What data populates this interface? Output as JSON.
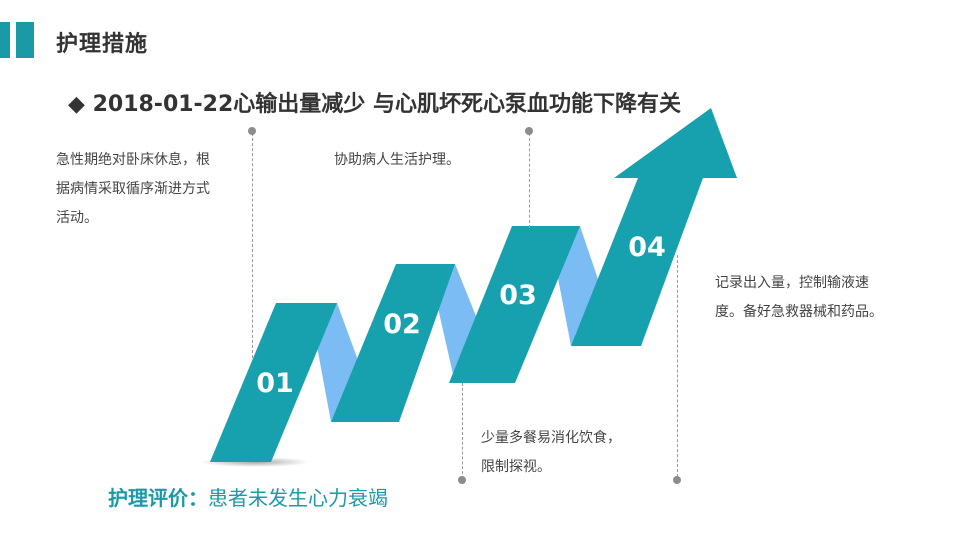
{
  "title": "护理措施",
  "headline": "◆ 2018-01-22心输出量减少 与心肌坏死心泵血功能下降有关",
  "steps": [
    {
      "number": "01",
      "text_lines": [
        "急性期绝对卧床休息，根",
        "据病情采取循序渐进方式",
        "活动。"
      ]
    },
    {
      "number": "02",
      "text_lines": [
        "协助病人生活护理。"
      ]
    },
    {
      "number": "03",
      "text_lines": [
        "少量多餐易消化饮食，",
        "限制探视。"
      ]
    },
    {
      "number": "04",
      "text_lines": [
        "记录出入量，控制输液速",
        "度。备好急救器械和药品。"
      ]
    }
  ],
  "evaluation": {
    "label": "护理评价：",
    "value": "患者未发生心力衰竭"
  },
  "colors": {
    "accent": "#1a9aa7",
    "ribbon_front": "#17a0ad",
    "ribbon_back": "#7bbcf5",
    "text": "#333333"
  }
}
